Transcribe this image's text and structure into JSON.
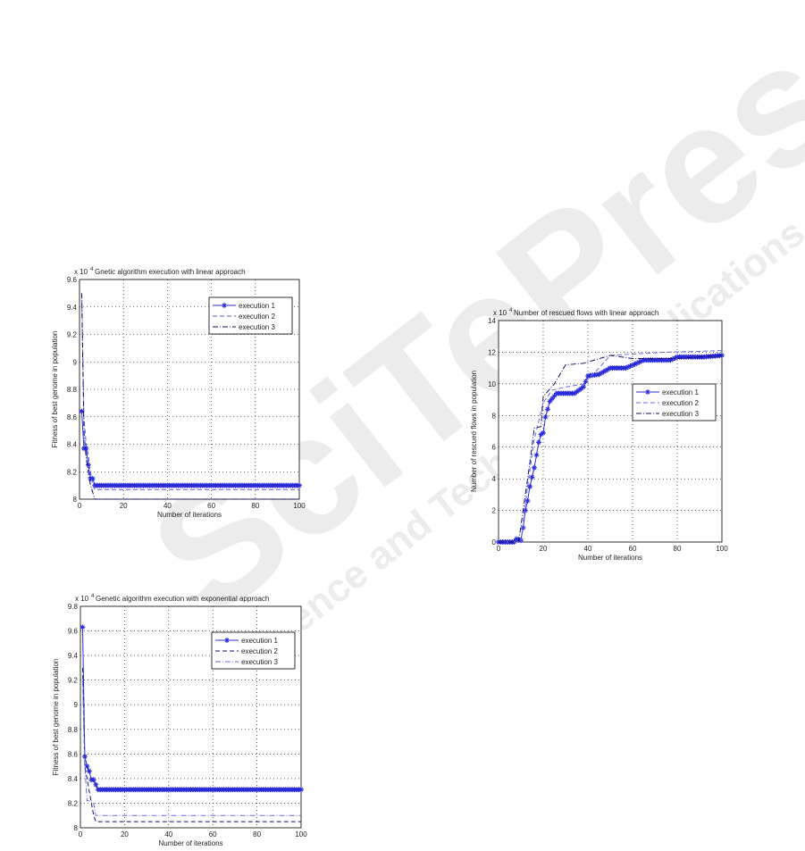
{
  "watermark": {
    "brand": "SciTePress",
    "tagline": "Science and Technology Publications"
  },
  "chart_data": [
    {
      "type": "line",
      "title": "Gnetic algorithm execution with linear approach",
      "exponent_label": "x 10",
      "exponent": "4",
      "xlabel": "Number of iterations",
      "ylabel": "Fitness of best genome in population",
      "xlim": [
        0,
        100
      ],
      "ylim": [
        8,
        9.6
      ],
      "xticks": [
        "0",
        "20",
        "40",
        "60",
        "80",
        "100"
      ],
      "yticks": [
        "8",
        "8.2",
        "8.4",
        "8.6",
        "8.8",
        "9",
        "9.2",
        "9.4",
        "9.6"
      ],
      "grid": true,
      "legend": "top-right",
      "series": [
        {
          "name": "execution 1",
          "style": "solid-star",
          "color": "#2a2ad8",
          "x": [
            1,
            2,
            3,
            4,
            5,
            6,
            7,
            100
          ],
          "y": [
            8.64,
            8.37,
            8.37,
            8.25,
            8.15,
            8.15,
            8.1,
            8.1
          ]
        },
        {
          "name": "execution 2",
          "style": "dashed",
          "color": "#5a5ae0",
          "x": [
            1,
            2,
            3,
            4,
            5,
            6,
            7,
            100
          ],
          "y": [
            9.5,
            8.6,
            8.4,
            8.32,
            8.2,
            8.1,
            8.07,
            8.07
          ]
        },
        {
          "name": "execution 3",
          "style": "dashdot",
          "color": "#10106a",
          "x": [
            1,
            2,
            3,
            4,
            5,
            6,
            7,
            100
          ],
          "y": [
            9.5,
            8.5,
            8.3,
            8.2,
            8.1,
            8.05,
            8.0,
            8.0
          ]
        }
      ]
    },
    {
      "type": "line",
      "title": "Genetic algorithm execution with exponential approach",
      "exponent_label": "x 10",
      "exponent": "4",
      "xlabel": "Number of iterations",
      "ylabel": "Fitness of best genome in population",
      "xlim": [
        0,
        100
      ],
      "ylim": [
        8,
        9.8
      ],
      "xticks": [
        "0",
        "20",
        "40",
        "60",
        "80",
        "100"
      ],
      "yticks": [
        "8",
        "8.2",
        "8.4",
        "8.6",
        "8.8",
        "9",
        "9.2",
        "9.4",
        "9.6",
        "9.8"
      ],
      "grid": true,
      "legend": "top-right",
      "series": [
        {
          "name": "execution 1",
          "style": "solid-star",
          "color": "#2a2ad8",
          "x": [
            1,
            2,
            3,
            4,
            5,
            6,
            7,
            8,
            100
          ],
          "y": [
            9.63,
            8.58,
            8.5,
            8.46,
            8.39,
            8.39,
            8.35,
            8.31,
            8.31
          ]
        },
        {
          "name": "execution 2",
          "style": "dashed",
          "color": "#10106a",
          "x": [
            1,
            2,
            3,
            4,
            5,
            6,
            7,
            100
          ],
          "y": [
            9.3,
            8.5,
            8.4,
            8.3,
            8.2,
            8.1,
            8.05,
            8.05
          ]
        },
        {
          "name": "execution 3",
          "style": "dashdot",
          "color": "#6a6ae0",
          "x": [
            1,
            2,
            3,
            4,
            5,
            6,
            7,
            100
          ],
          "y": [
            9.2,
            8.5,
            8.22,
            8.22,
            8.22,
            8.2,
            8.1,
            8.1
          ]
        }
      ]
    },
    {
      "type": "line",
      "title": "Number of rescued flows with linear approach",
      "exponent_label": "x 10",
      "exponent": "4",
      "xlabel": "Number of iterations",
      "ylabel": "Number of rescued flows in population",
      "xlim": [
        0,
        100
      ],
      "ylim": [
        0,
        14
      ],
      "xticks": [
        "0",
        "20",
        "40",
        "60",
        "80",
        "100"
      ],
      "yticks": [
        "0",
        "2",
        "4",
        "6",
        "8",
        "10",
        "12",
        "14"
      ],
      "grid": true,
      "legend": "right",
      "series": [
        {
          "name": "execution 1",
          "style": "solid-star",
          "color": "#2a2ad8",
          "x": [
            0,
            7,
            8,
            10,
            11,
            12,
            13,
            14,
            15,
            16,
            17,
            18,
            19,
            20,
            21,
            23,
            26,
            34,
            38,
            40,
            45,
            50,
            57,
            65,
            77,
            80,
            92,
            100
          ],
          "y": [
            0,
            0,
            0.2,
            0.1,
            0.9,
            2,
            2.6,
            3.5,
            4.1,
            4.7,
            5.5,
            6.3,
            6.8,
            6.9,
            7.9,
            8.9,
            9.4,
            9.4,
            9.8,
            10.5,
            10.6,
            11,
            11,
            11.5,
            11.5,
            11.7,
            11.7,
            11.8
          ]
        },
        {
          "name": "execution 2",
          "style": "dashed",
          "color": "#6a6ae0",
          "x": [
            0,
            10,
            13,
            16,
            20,
            24,
            30,
            38,
            45,
            50,
            75,
            100
          ],
          "y": [
            0,
            0,
            3.5,
            6.5,
            8.8,
            9.6,
            9.8,
            10,
            11,
            11.8,
            12,
            12.1
          ]
        },
        {
          "name": "execution 3",
          "style": "dashdot",
          "color": "#10106a",
          "x": [
            0,
            9,
            14,
            16,
            19,
            20,
            25,
            30,
            38,
            50,
            60,
            80,
            100
          ],
          "y": [
            0,
            0,
            5,
            7.2,
            7.3,
            9.2,
            10,
            11.2,
            11.3,
            11.8,
            11.6,
            11.6,
            11.8
          ]
        }
      ]
    }
  ]
}
